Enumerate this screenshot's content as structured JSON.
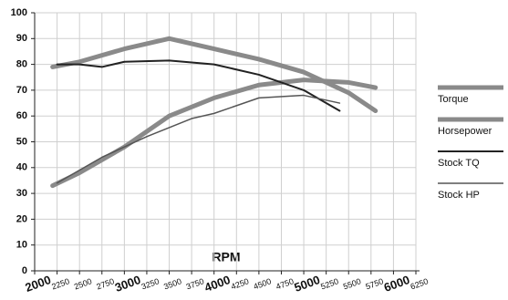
{
  "chart_data": {
    "type": "line",
    "axis_label": "RPM",
    "xlim": [
      2000,
      6250
    ],
    "xticks": [
      2000,
      2250,
      2500,
      2750,
      3000,
      3250,
      3500,
      3750,
      4000,
      4250,
      4500,
      4750,
      5000,
      5250,
      5500,
      5750,
      6000,
      6250
    ],
    "ylim": [
      0,
      100
    ],
    "yticks": [
      0,
      10,
      20,
      30,
      40,
      50,
      60,
      70,
      80,
      90,
      100
    ],
    "grid": true,
    "legend": "right",
    "series": [
      {
        "name": "Torque",
        "color": "#8a8a8a",
        "width": 5,
        "x": [
          2200,
          2500,
          3000,
          3500,
          4000,
          4500,
          5000,
          5500,
          5800
        ],
        "values": [
          79,
          81,
          86,
          90,
          86,
          82,
          77,
          69,
          62
        ]
      },
      {
        "name": "Horsepower",
        "color": "#8a8a8a",
        "width": 5,
        "x": [
          2200,
          2500,
          3000,
          3500,
          4000,
          4500,
          5000,
          5500,
          5800
        ],
        "values": [
          33,
          38,
          48,
          60,
          67,
          72,
          74,
          73,
          71
        ]
      },
      {
        "name": "Stock TQ",
        "color": "#222222",
        "width": 2,
        "x": [
          2250,
          2500,
          2750,
          3000,
          3500,
          4000,
          4500,
          5000,
          5400
        ],
        "values": [
          80,
          80,
          79,
          81,
          81.5,
          80,
          76,
          70,
          62
        ]
      },
      {
        "name": "Stock HP",
        "color": "#555555",
        "width": 1.5,
        "x": [
          2250,
          2750,
          3250,
          3750,
          4000,
          4250,
          4500,
          5000,
          5400
        ],
        "values": [
          34,
          44,
          52,
          59,
          61,
          64,
          67,
          68,
          65
        ]
      }
    ]
  }
}
